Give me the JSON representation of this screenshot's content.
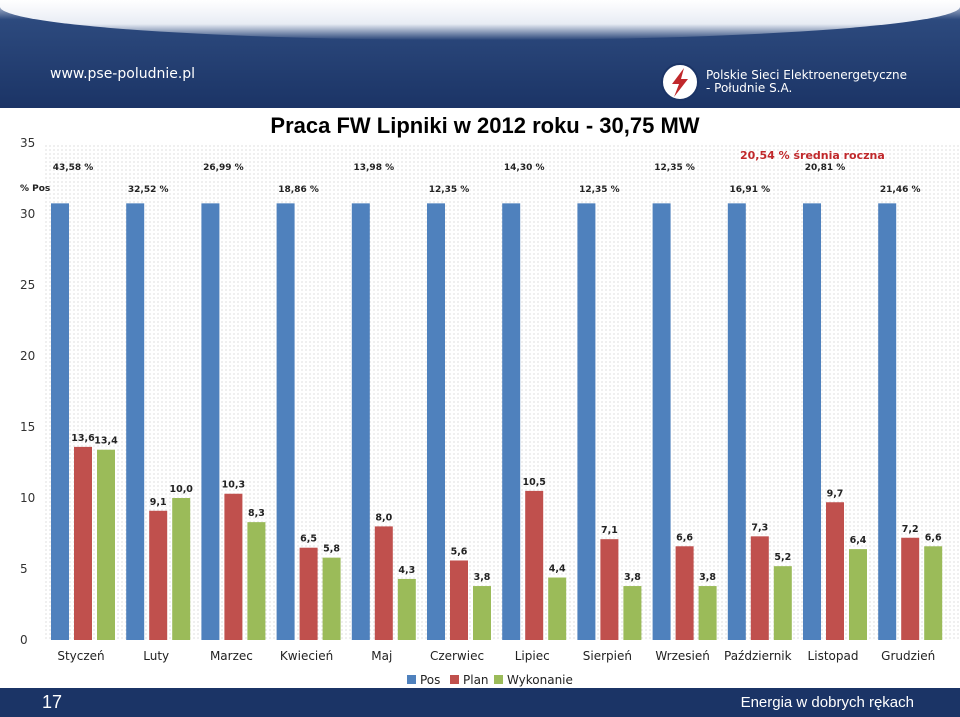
{
  "header": {
    "site_url": "www.pse-poludnie.pl",
    "company_line1": "Polskie Sieci Elektroenergetyczne",
    "company_line2": "- Południe S.A.",
    "logo_icon": "pse-logo-icon"
  },
  "footer": {
    "slide_number": "17",
    "slogan": "Energia w dobrych rękach",
    "background": "#1b3466"
  },
  "colors": {
    "pos": "#4f81bd",
    "plan": "#c0504d",
    "wykonanie": "#9bbb59",
    "average_text": "#c0282b"
  },
  "chart_data": {
    "type": "bar",
    "title": "Praca FW Lipniki w 2012 roku - 30,75 MW",
    "pct_axis_label": "% Pos",
    "average_label": "20,54 % średnia roczna",
    "ylim": [
      0,
      35
    ],
    "yticks": [
      0,
      5,
      10,
      15,
      20,
      25,
      30,
      35
    ],
    "pos_display_top": 30.75,
    "categories": [
      "Styczeń",
      "Luty",
      "Marzec",
      "Kwiecień",
      "Maj",
      "Czerwiec",
      "Lipiec",
      "Sierpień",
      "Wrzesień",
      "Październik",
      "Listopad",
      "Grudzień"
    ],
    "series": [
      {
        "name": "Pos",
        "values": [
          30.75,
          30.75,
          30.75,
          30.75,
          30.75,
          30.75,
          30.75,
          30.75,
          30.75,
          30.75,
          30.75,
          30.75
        ]
      },
      {
        "name": "Plan",
        "values": [
          13.6,
          9.1,
          10.3,
          6.5,
          8.0,
          5.6,
          10.5,
          7.1,
          6.6,
          7.3,
          9.7,
          7.2
        ]
      },
      {
        "name": "Wykonanie",
        "values": [
          13.4,
          10.0,
          8.3,
          5.8,
          4.3,
          3.8,
          4.4,
          3.8,
          3.8,
          5.2,
          6.4,
          6.6
        ]
      }
    ],
    "plan_labels": [
      "13,6",
      "9,1",
      "10,3",
      "6,5",
      "8,0",
      "5,6",
      "10,5",
      "7,1",
      "6,6",
      "7,3",
      "9,7",
      "7,2"
    ],
    "wykonanie_labels": [
      "13,4",
      "10,0",
      "8,3",
      "5,8",
      "4,3",
      "3,8",
      "4,4",
      "3,8",
      "3,8",
      "5,2",
      "6,4",
      "6,6"
    ],
    "pct_of_pos": [
      "43,58 %",
      "32,52 %",
      "26,99 %",
      "18,86 %",
      "13,98 %",
      "12,35 %",
      "14,30 %",
      "12,35 %",
      "12,35 %",
      "16,91 %",
      "20,81 %",
      "21,46 %"
    ],
    "legend": [
      "Pos",
      "Plan",
      "Wykonanie"
    ],
    "legend_position": "bottom",
    "grid": false
  }
}
